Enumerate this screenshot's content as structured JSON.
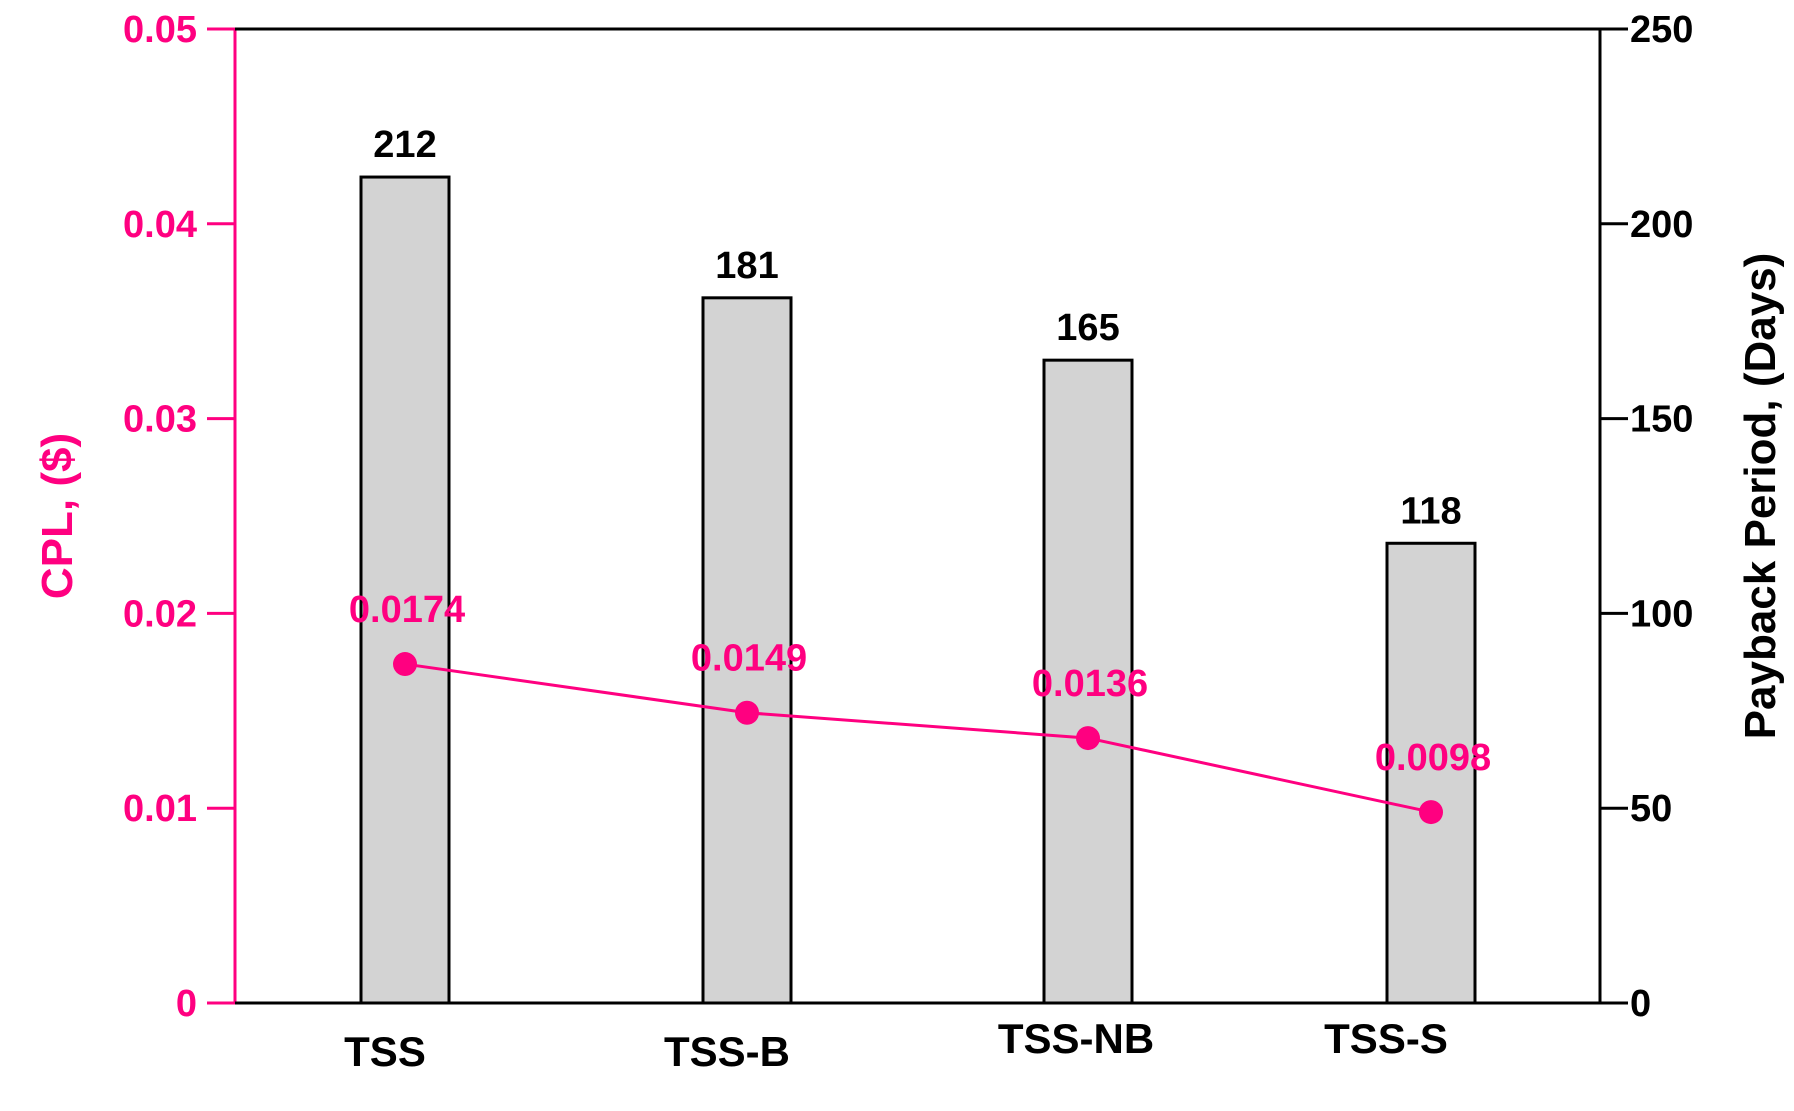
{
  "chart_data": {
    "type": "bar",
    "categories": [
      "TSS",
      "TSS-B",
      "TSS-NB",
      "TSS-S"
    ],
    "series": [
      {
        "type": "bar",
        "axis": "right",
        "values": [
          212,
          181,
          165,
          118
        ],
        "labels": [
          "212",
          "181",
          "165",
          "118"
        ]
      },
      {
        "type": "line",
        "axis": "left",
        "values": [
          0.0174,
          0.0149,
          0.0136,
          0.0098
        ],
        "labels": [
          "0.0174",
          "0.0149",
          "0.0136",
          "0.0098"
        ]
      }
    ],
    "y_left": {
      "label": "CPL, ($)",
      "lim": [
        0,
        0.05
      ],
      "ticks": [
        0,
        0.01,
        0.02,
        0.03,
        0.04,
        0.05
      ],
      "tick_labels": [
        "0",
        "0.01",
        "0.02",
        "0.03",
        "0.04",
        "0.05"
      ]
    },
    "y_right": {
      "label": "Payback Period, (Days)",
      "lim": [
        0,
        250
      ],
      "ticks": [
        0,
        50,
        100,
        150,
        200,
        250
      ],
      "tick_labels": [
        "0",
        "50",
        "100",
        "150",
        "200",
        "250"
      ]
    },
    "grid": false,
    "colors": {
      "left_axis": "#ff0080",
      "right_axis": "#000000",
      "bar_fill": "#d3d3d3",
      "bar_stroke": "#000000",
      "line": "#ff0080"
    }
  }
}
